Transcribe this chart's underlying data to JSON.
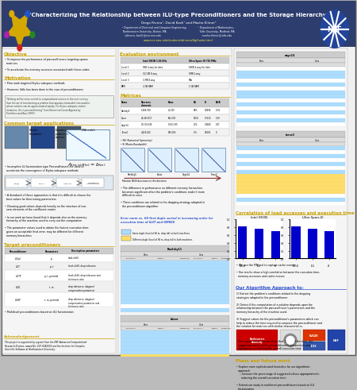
{
  "title": "\"Characterizing the Relationship between ILU-type Preconditioners and the Storage Hierarchy\"",
  "authors": "Diego Rivera¹, David Kaeli¹ and Masha Kilmer²",
  "header_bg": "#2d3d6e",
  "header_text": "#ffffff",
  "url_color": "#ffee44",
  "section_title_color": "#c8a000",
  "algo_title_color": "#3355cc",
  "error_title_color": "#3355cc",
  "bar_color": "#0000cc",
  "highlight_blue": "#aaddff",
  "highlight_yellow": "#ffdd66",
  "table_header_bg": "#cccccc",
  "table_subheader_bg": "#dddddd",
  "col_bg": "#f5f5f5",
  "quote_bg": "#eef2ee"
}
